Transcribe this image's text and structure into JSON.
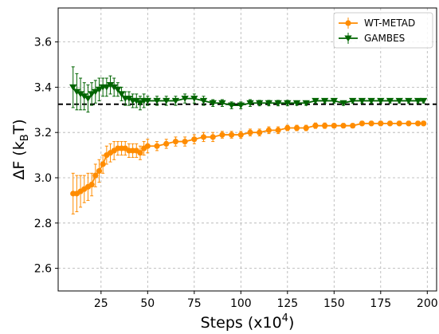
{
  "chart_data": {
    "type": "line",
    "title": "",
    "xlabel": "Steps (x10",
    "xlabel_sup": "4",
    "xlabel_end": ")",
    "ylabel": "ΔF (k",
    "ylabel_sub": "B",
    "ylabel_end": "T)",
    "xlim": [
      2,
      205
    ],
    "ylim": [
      2.5,
      3.75
    ],
    "xticks": [
      25,
      50,
      75,
      100,
      125,
      150,
      175,
      200
    ],
    "xtick_labels": [
      "25",
      "50",
      "75",
      "100",
      "125",
      "150",
      "175",
      "200"
    ],
    "yticks": [
      2.6,
      2.8,
      3.0,
      3.2,
      3.4,
      3.6
    ],
    "ytick_labels": [
      "2.6",
      "2.8",
      "3.0",
      "3.2",
      "3.4",
      "3.6"
    ],
    "grid": true,
    "legend_position": "top-right",
    "reference_line": {
      "y": 3.325,
      "style": "dashed",
      "color": "#000000"
    },
    "series": [
      {
        "name": "WT-METAD",
        "color": "#ff8c00",
        "marker": "circle",
        "x": [
          10,
          12,
          14,
          16,
          18,
          20,
          22,
          24,
          26,
          28,
          30,
          32,
          34,
          36,
          38,
          40,
          42,
          44,
          46,
          48,
          50,
          55,
          60,
          65,
          70,
          75,
          80,
          85,
          90,
          95,
          100,
          105,
          110,
          115,
          120,
          125,
          130,
          135,
          140,
          145,
          150,
          155,
          160,
          165,
          170,
          175,
          180,
          185,
          190,
          195,
          198
        ],
        "y": [
          2.93,
          2.93,
          2.94,
          2.95,
          2.96,
          2.97,
          3.01,
          3.03,
          3.06,
          3.1,
          3.11,
          3.12,
          3.13,
          3.13,
          3.13,
          3.12,
          3.12,
          3.12,
          3.11,
          3.13,
          3.14,
          3.14,
          3.15,
          3.16,
          3.16,
          3.17,
          3.18,
          3.18,
          3.19,
          3.19,
          3.19,
          3.2,
          3.2,
          3.21,
          3.21,
          3.22,
          3.22,
          3.22,
          3.23,
          3.23,
          3.23,
          3.23,
          3.23,
          3.24,
          3.24,
          3.24,
          3.24,
          3.24,
          3.24,
          3.24,
          3.24
        ],
        "yerr": [
          0.09,
          0.08,
          0.07,
          0.06,
          0.06,
          0.05,
          0.05,
          0.05,
          0.04,
          0.04,
          0.04,
          0.04,
          0.03,
          0.03,
          0.03,
          0.03,
          0.03,
          0.03,
          0.03,
          0.03,
          0.03,
          0.02,
          0.02,
          0.02,
          0.02,
          0.02,
          0.02,
          0.02,
          0.015,
          0.015,
          0.015,
          0.015,
          0.015,
          0.015,
          0.015,
          0.012,
          0.012,
          0.012,
          0.012,
          0.012,
          0.01,
          0.01,
          0.01,
          0.01,
          0.01,
          0.01,
          0.01,
          0.01,
          0.01,
          0.01,
          0.01
        ]
      },
      {
        "name": "GAMBES",
        "color": "#006400",
        "marker": "triangle-down",
        "x": [
          10,
          12,
          14,
          16,
          18,
          20,
          22,
          24,
          26,
          28,
          30,
          32,
          34,
          36,
          38,
          40,
          42,
          44,
          46,
          48,
          50,
          55,
          60,
          65,
          70,
          75,
          80,
          85,
          90,
          95,
          100,
          105,
          110,
          115,
          120,
          125,
          130,
          135,
          140,
          145,
          150,
          155,
          160,
          165,
          170,
          175,
          180,
          185,
          190,
          195,
          198
        ],
        "y": [
          3.4,
          3.38,
          3.37,
          3.36,
          3.35,
          3.37,
          3.38,
          3.39,
          3.4,
          3.4,
          3.41,
          3.4,
          3.39,
          3.37,
          3.35,
          3.35,
          3.34,
          3.34,
          3.33,
          3.34,
          3.34,
          3.34,
          3.34,
          3.34,
          3.35,
          3.35,
          3.34,
          3.33,
          3.33,
          3.32,
          3.32,
          3.33,
          3.33,
          3.33,
          3.33,
          3.33,
          3.33,
          3.33,
          3.34,
          3.34,
          3.34,
          3.33,
          3.34,
          3.34,
          3.34,
          3.34,
          3.34,
          3.34,
          3.34,
          3.34,
          3.34
        ],
        "yerr": [
          0.09,
          0.08,
          0.07,
          0.06,
          0.06,
          0.05,
          0.05,
          0.05,
          0.04,
          0.04,
          0.04,
          0.04,
          0.03,
          0.03,
          0.03,
          0.03,
          0.03,
          0.03,
          0.03,
          0.03,
          0.02,
          0.02,
          0.02,
          0.02,
          0.02,
          0.02,
          0.02,
          0.015,
          0.015,
          0.015,
          0.015,
          0.015,
          0.012,
          0.012,
          0.012,
          0.012,
          0.01,
          0.01,
          0.01,
          0.01,
          0.01,
          0.01,
          0.01,
          0.01,
          0.01,
          0.01,
          0.01,
          0.01,
          0.01,
          0.01,
          0.01
        ]
      }
    ]
  }
}
